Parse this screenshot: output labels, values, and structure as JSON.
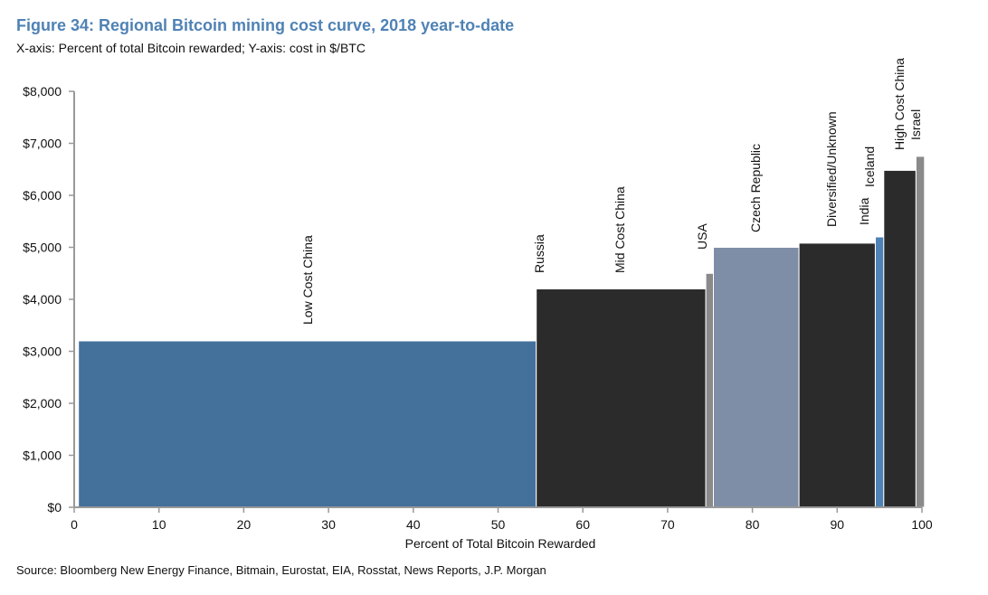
{
  "header": {
    "title": "Figure 34: Regional Bitcoin mining cost curve, 2018 year-to-date",
    "subtitle": "X-axis: Percent of total Bitcoin rewarded; Y-axis: cost in $/BTC"
  },
  "footer": {
    "source": "Source: Bloomberg New Energy Finance, Bitmain, Eurostat, EIA, Rosstat, News Reports, J.P. Morgan"
  },
  "chart_data": {
    "type": "bar",
    "variant": "variable-width cost curve",
    "xlabel": "Percent of Total Bitcoin Rewarded",
    "xlim": [
      0,
      100
    ],
    "ylim": [
      0,
      8000
    ],
    "x_ticks": [
      "0",
      "10",
      "20",
      "30",
      "40",
      "50",
      "60",
      "70",
      "80",
      "90",
      "100"
    ],
    "y_ticks": [
      "$0",
      "$1,000",
      "$2,000",
      "$3,000",
      "$4,000",
      "$5,000",
      "$6,000",
      "$7,000",
      "$8,000"
    ],
    "grid": false,
    "segments": [
      {
        "label": "Low Cost China",
        "x_start": 0.5,
        "x_end": 54.5,
        "cost": 3200,
        "color": "#44709c"
      },
      {
        "label": "Russia",
        "x_start": 54.5,
        "x_end": 54.5,
        "cost": 4200,
        "color": "#2b2b2b"
      },
      {
        "label": "Mid Cost China",
        "x_start": 54.5,
        "x_end": 74.5,
        "cost": 4200,
        "color": "#2b2b2b"
      },
      {
        "label": "USA",
        "x_start": 74.5,
        "x_end": 75.4,
        "cost": 4500,
        "color": "#8a8a8a"
      },
      {
        "label": "Czech Republic",
        "x_start": 75.4,
        "x_end": 85.5,
        "cost": 5000,
        "color": "#7f8ea7"
      },
      {
        "label": "Diversified/Unknown",
        "x_start": 85.5,
        "x_end": 94.5,
        "cost": 5080,
        "color": "#2b2b2b"
      },
      {
        "label": "India",
        "x_start": 94.5,
        "x_end": 94.5,
        "cost": 5080,
        "color": "#2b2b2b"
      },
      {
        "label": "Iceland",
        "x_start": 94.5,
        "x_end": 95.5,
        "cost": 5200,
        "color": "#4f82b5"
      },
      {
        "label": "High Cost China",
        "x_start": 95.5,
        "x_end": 99.3,
        "cost": 6480,
        "color": "#2b2b2b"
      },
      {
        "label": "Israel",
        "x_start": 99.3,
        "x_end": 100.3,
        "cost": 6750,
        "color": "#8a8a8a"
      }
    ]
  }
}
